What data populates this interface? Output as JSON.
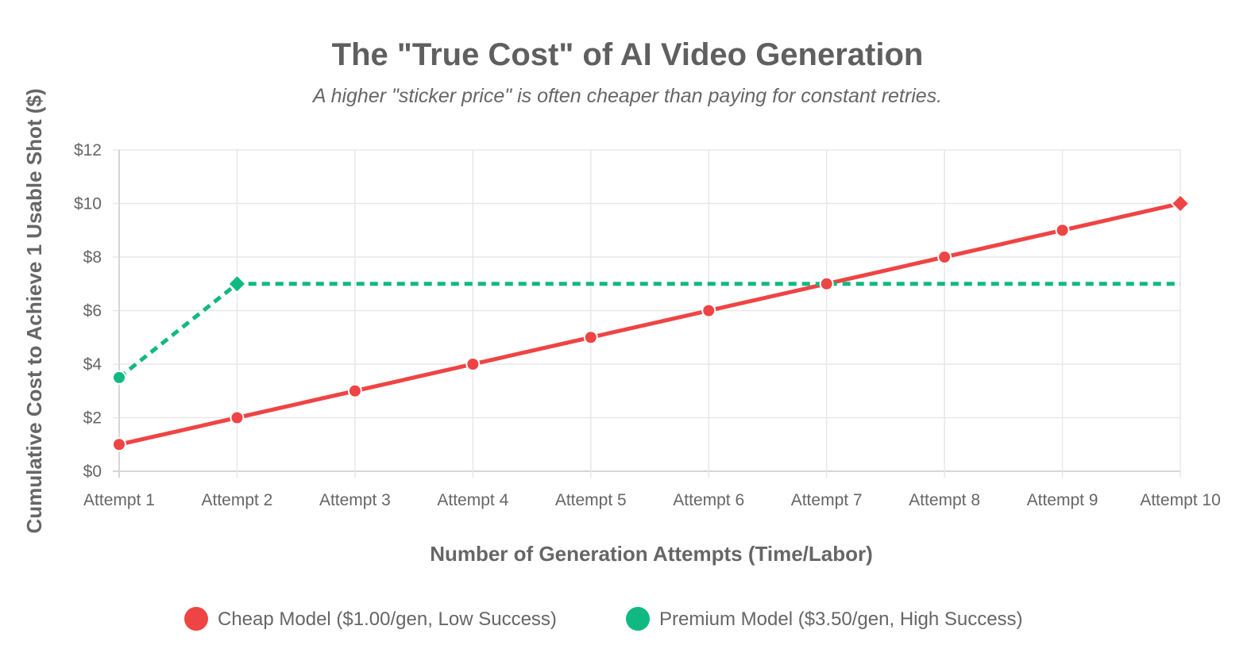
{
  "chart_data": {
    "type": "line",
    "title": "The \"True Cost\" of AI Video Generation",
    "subtitle": "A higher \"sticker price\" is often cheaper than paying for constant retries.",
    "xlabel": "Number of Generation Attempts (Time/Labor)",
    "ylabel": "Cumulative Cost to Achieve 1 Usable Shot ($)",
    "categories": [
      "Attempt 1",
      "Attempt 2",
      "Attempt 3",
      "Attempt 4",
      "Attempt 5",
      "Attempt 6",
      "Attempt 7",
      "Attempt 8",
      "Attempt 9",
      "Attempt 10"
    ],
    "ylim": [
      0,
      12
    ],
    "yticks": [
      0,
      2,
      4,
      6,
      8,
      10,
      12
    ],
    "ytick_labels": [
      "$0",
      "$2",
      "$4",
      "$6",
      "$8",
      "$10",
      "$12"
    ],
    "grid": true,
    "legend_position": "bottom",
    "series": [
      {
        "name": "Cheap Model ($1.00/gen, Low Success)",
        "color": "#ef4444",
        "line_style": "solid",
        "values": [
          1,
          2,
          3,
          4,
          5,
          6,
          7,
          8,
          9,
          10
        ],
        "final_marker": "diamond"
      },
      {
        "name": "Premium Model ($3.50/gen, High Success)",
        "color": "#10b981",
        "line_style": "dashed",
        "values": [
          3.5,
          7,
          7,
          7,
          7,
          7,
          7,
          7,
          7,
          7
        ],
        "diamond_marker_index": 1,
        "point_markers": [
          0,
          1
        ]
      }
    ]
  }
}
